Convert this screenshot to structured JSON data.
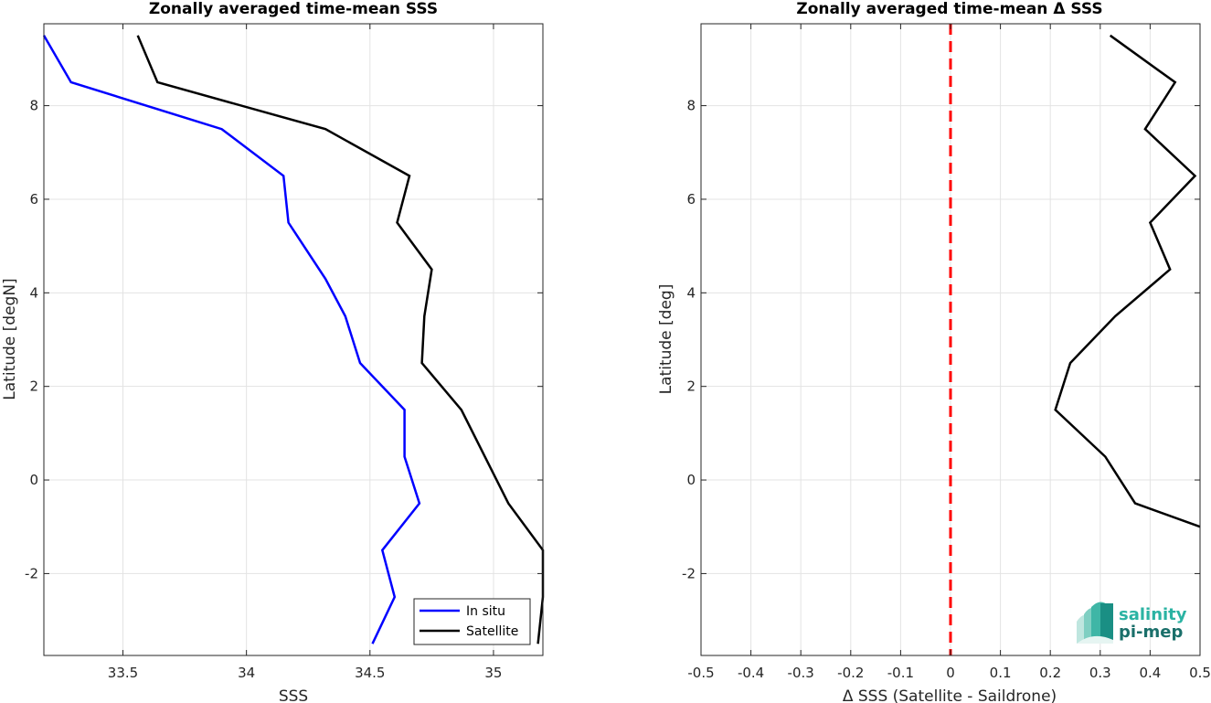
{
  "chart_data": [
    {
      "type": "line",
      "title": "Zonally averaged time-mean SSS",
      "xlabel": "SSS",
      "ylabel": "Latitude [degN]",
      "xlim": [
        33.18,
        35.2
      ],
      "ylim": [
        -3.75,
        9.75
      ],
      "xticks": [
        33.5,
        34,
        34.5,
        35
      ],
      "xtick_labels": [
        "33.5",
        "34",
        "34.5",
        "35"
      ],
      "yticks": [
        -2,
        0,
        2,
        4,
        6,
        8
      ],
      "ytick_labels": [
        "-2",
        "0",
        "2",
        "4",
        "6",
        "8"
      ],
      "grid": true,
      "legend": "bottom-right",
      "series": [
        {
          "name": "In situ",
          "color": "#0000ff",
          "x": [
            33.18,
            33.29,
            33.9,
            34.15,
            34.17,
            34.32,
            34.4,
            34.46,
            34.64,
            34.64,
            34.7,
            34.55,
            34.6,
            34.51
          ],
          "y": [
            9.5,
            8.5,
            7.5,
            6.5,
            5.5,
            4.3,
            3.5,
            2.5,
            1.5,
            0.5,
            -0.5,
            -1.5,
            -2.5,
            -3.5
          ]
        },
        {
          "name": "Satellite",
          "color": "#000000",
          "x": [
            33.56,
            33.64,
            34.32,
            34.66,
            34.61,
            34.75,
            34.72,
            34.71,
            34.87,
            35.06,
            35.2,
            35.2,
            35.18
          ],
          "y": [
            9.5,
            8.5,
            7.5,
            6.5,
            5.5,
            4.5,
            3.5,
            2.5,
            1.5,
            -0.5,
            -1.5,
            -2.5,
            -3.5
          ]
        }
      ]
    },
    {
      "type": "line",
      "title": "Zonally averaged time-mean Δ SSS",
      "xlabel": "Δ SSS (Satellite - Saildrone)",
      "ylabel": "Latitude [deg]",
      "xlim": [
        -0.5,
        0.5
      ],
      "ylim": [
        -3.75,
        9.75
      ],
      "xticks": [
        -0.5,
        -0.4,
        -0.3,
        -0.2,
        -0.1,
        0,
        0.1,
        0.2,
        0.3,
        0.4,
        0.5
      ],
      "xtick_labels": [
        "-0.5",
        "-0.4",
        "-0.3",
        "-0.2",
        "-0.1",
        "0",
        "0.1",
        "0.2",
        "0.3",
        "0.4",
        "0.5"
      ],
      "yticks": [
        -2,
        0,
        2,
        4,
        6,
        8
      ],
      "ytick_labels": [
        "-2",
        "0",
        "2",
        "4",
        "6",
        "8"
      ],
      "grid": true,
      "reference_line": {
        "x": 0,
        "color": "#ff0000",
        "style": "dashed"
      },
      "series": [
        {
          "color": "#000000",
          "x": [
            0.32,
            0.45,
            0.39,
            0.49,
            0.4,
            0.44,
            0.33,
            0.24,
            0.21,
            0.31,
            0.37,
            0.5
          ],
          "y": [
            9.5,
            8.5,
            7.5,
            6.5,
            5.5,
            4.5,
            3.5,
            2.5,
            1.5,
            0.5,
            -0.5,
            -1.0
          ]
        }
      ]
    }
  ],
  "logo": {
    "line1": "salinity",
    "line2": "pi-mep",
    "color_light": "#2bb3a3",
    "color_dark": "#1a6f6a"
  }
}
